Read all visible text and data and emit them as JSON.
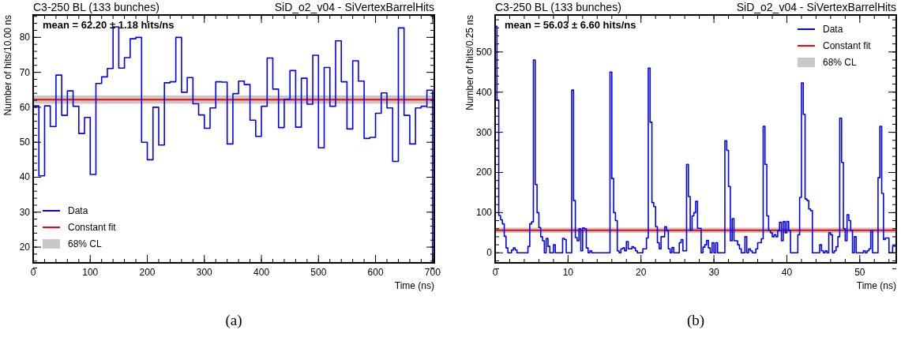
{
  "chart_data": [
    {
      "type": "histogram",
      "title": "C3-250 BL (133 bunches)",
      "subtitle": "SiD_o2_v04 - SiVertexBarrelHits",
      "xlabel": "Time (ns)",
      "ylabel": "Number of hits/10.00 ns",
      "annotations": [
        "mean = 62.20 ± 1.18 hits/ns",
        "(a)"
      ],
      "bins": [
        0,
        10,
        20,
        30,
        40,
        50,
        60,
        70,
        80,
        90,
        100,
        110,
        120,
        130,
        140,
        150,
        160,
        170,
        180,
        190,
        200,
        210,
        220,
        230,
        240,
        250,
        260,
        270,
        280,
        290,
        300,
        310,
        320,
        330,
        340,
        350,
        360,
        370,
        380,
        390,
        400,
        410,
        420,
        430,
        440,
        450,
        460,
        470,
        480,
        490,
        500,
        510,
        520,
        530,
        540,
        550,
        560,
        570,
        580,
        590,
        600,
        610,
        620,
        630,
        640,
        650,
        660,
        670,
        680,
        690,
        700
      ],
      "series": [
        {
          "name": "Data",
          "color": "#0000ff",
          "values": [
            60.4,
            40.4,
            60.4,
            54.5,
            69.2,
            57.7,
            64.7,
            60.3,
            52.5,
            57.1,
            40.8,
            66.8,
            68.7,
            71.1,
            83,
            71.2,
            74.2,
            79.6,
            80,
            50,
            45,
            60,
            49.2,
            67,
            67.3,
            80,
            64.3,
            68.5,
            61,
            57.8,
            54,
            59.8,
            67.3,
            67.2,
            49.5,
            63.9,
            67.5,
            66.5,
            56.3,
            51.7,
            60.3,
            74.1,
            65.2,
            54.2,
            62.3,
            70.5,
            54.3,
            68.3,
            60.9,
            74.9,
            48.4,
            71.4,
            60.3,
            79,
            67.3,
            53.8,
            73.3,
            67.5,
            51.1,
            51.4,
            58.3,
            64.1,
            59.8,
            44.5,
            82.7,
            57.7,
            49.5,
            59.8,
            60.3,
            64.9
          ]
        }
      ],
      "ref_lines": [
        {
          "axis": "y",
          "value": 62.2,
          "label": "Constant fit",
          "color": "#ff0000"
        }
      ],
      "bands": [
        {
          "axis": "y",
          "from": 61.02,
          "to": 63.38,
          "label": "68% CL",
          "color": "#c8c8c8"
        }
      ],
      "xlim": [
        0,
        703
      ],
      "xticks": [
        0,
        100,
        200,
        300,
        400,
        500,
        600,
        700
      ],
      "ylim": [
        15.5,
        86.4
      ],
      "yticks": [
        20,
        30,
        40,
        50,
        60,
        70,
        80
      ],
      "legend": "bottom left"
    },
    {
      "type": "histogram",
      "title": "C3-250 BL (133 bunches)",
      "subtitle": "SiD_o2_v04 - SiVertexBarrelHits",
      "xlabel": "Time (ns)",
      "ylabel": "Number of hits/0.25 ns",
      "annotations": [
        "mean = 56.03 ± 6.60 hits/ns",
        "(b)"
      ],
      "bins": [
        0,
        0.25,
        0.5,
        0.75,
        1,
        1.25,
        1.5,
        1.75,
        2.25,
        2.5,
        2.75,
        3,
        4.5,
        4.75,
        5,
        5.25,
        5.5,
        5.75,
        6,
        6.25,
        6.5,
        6.75,
        7,
        7.25,
        7.5,
        8,
        8.25,
        9.25,
        9.5,
        9.75,
        10.5,
        10.75,
        11,
        11.25,
        11.5,
        11.75,
        12,
        12.25,
        12.5,
        12.75,
        13,
        13.25,
        15.75,
        16,
        16.25,
        16.5,
        16.75,
        17,
        17.25,
        17.5,
        17.75,
        18,
        18.25,
        18.5,
        18.75,
        19,
        19.25,
        19.5,
        20.25,
        20.5,
        20.75,
        21,
        21.25,
        21.5,
        21.75,
        22,
        22.25,
        22.5,
        22.75,
        23,
        23.25,
        23.5,
        23.75,
        24,
        24.25,
        24.5,
        25.25,
        25.5,
        25.75,
        26,
        26.25,
        26.5,
        26.75,
        27,
        27.25,
        27.5,
        27.75,
        28,
        28.25,
        28.5,
        28.75,
        29,
        29.25,
        29.5,
        29.75,
        30,
        30.25,
        30.5,
        31.5,
        31.75,
        32,
        32.25,
        32.5,
        32.75,
        33,
        33.25,
        33.5,
        33.75,
        34.25,
        34.5,
        34.75,
        35,
        35.25,
        35.75,
        36,
        36.25,
        36.5,
        36.75,
        37,
        37.25,
        37.5,
        37.75,
        38,
        38.25,
        38.5,
        38.75,
        39,
        39.25,
        39.5,
        39.75,
        40,
        40.25,
        40.5,
        41.5,
        41.75,
        42,
        42.25,
        42.5,
        42.75,
        43,
        43.25,
        43.5,
        44.5,
        44.75,
        45,
        45.25,
        45.5,
        45.75,
        46,
        46.25,
        46.5,
        46.75,
        47,
        47.25,
        47.5,
        47.75,
        48,
        48.25,
        48.5,
        48.75,
        49,
        49.25,
        49.5,
        50.5,
        50.75,
        51,
        51.25,
        51.5,
        51.75,
        52.5,
        52.75,
        53,
        53.25,
        53.5,
        54,
        54.5,
        55
      ],
      "series": [
        {
          "name": "Data",
          "color": "#0000ff",
          "values": [
            564,
            380,
            93,
            82,
            72,
            41,
            12,
            0,
            7,
            12,
            7,
            0,
            16,
            72,
            77,
            480,
            170,
            100,
            63,
            40,
            30,
            0,
            36,
            16,
            0,
            20,
            0,
            36,
            33,
            0,
            405,
            130,
            38,
            30,
            60,
            5,
            62,
            60,
            12,
            0,
            5,
            0,
            450,
            185,
            100,
            80,
            5,
            0,
            10,
            12,
            5,
            28,
            10,
            10,
            15,
            12,
            5,
            0,
            10,
            10,
            37,
            460,
            325,
            125,
            115,
            65,
            25,
            10,
            40,
            40,
            65,
            55,
            10,
            0,
            13,
            0,
            25,
            33,
            5,
            5,
            220,
            140,
            56,
            92,
            100,
            128,
            61,
            61,
            0,
            14,
            20,
            31,
            12,
            0,
            25,
            0,
            25,
            0,
            279,
            255,
            165,
            30,
            85,
            30,
            30,
            20,
            10,
            0,
            40,
            0,
            10,
            5,
            0,
            10,
            25,
            25,
            35,
            315,
            220,
            92,
            55,
            50,
            40,
            45,
            40,
            55,
            76,
            30,
            78,
            50,
            78,
            55,
            0,
            45,
            138,
            423,
            345,
            134,
            130,
            109,
            105,
            0,
            20,
            5,
            0,
            5,
            0,
            50,
            45,
            0,
            5,
            15,
            40,
            335,
            225,
            60,
            30,
            95,
            80,
            55,
            0,
            40,
            0,
            5,
            0,
            5,
            10,
            55,
            0,
            187,
            315,
            148,
            33,
            37,
            0,
            17
          ]
        }
      ],
      "ref_lines": [
        {
          "axis": "y",
          "value": 56.03,
          "label": "Constant fit",
          "color": "#ff0000"
        }
      ],
      "bands": [
        {
          "axis": "y",
          "from": 49.43,
          "to": 62.63,
          "label": "68% CL",
          "color": "#c8c8c8"
        }
      ],
      "xlim": [
        0,
        55
      ],
      "xticks": [
        0,
        10,
        20,
        30,
        40,
        50
      ],
      "ylim": [
        -25,
        592
      ],
      "yticks": [
        0,
        100,
        200,
        300,
        400,
        500
      ],
      "legend": "top right"
    }
  ]
}
